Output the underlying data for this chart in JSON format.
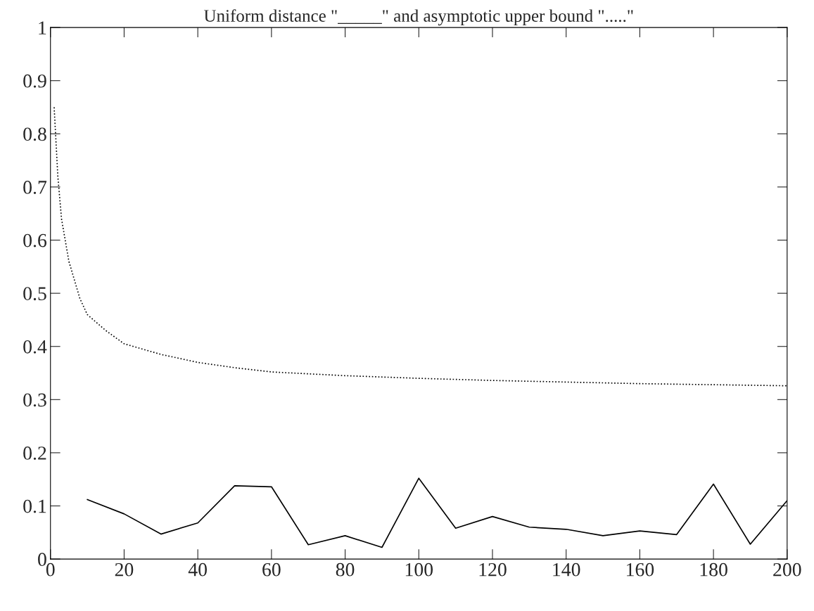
{
  "chart_data": {
    "type": "line",
    "title": "Uniform distance \"_____\" and asymptotic upper bound \".....\"",
    "xlim": [
      0,
      200
    ],
    "xticks": [
      0,
      20,
      40,
      60,
      80,
      100,
      120,
      140,
      160,
      180,
      200
    ],
    "ylim": [
      0,
      1
    ],
    "yticks": [
      0,
      0.1,
      0.2,
      0.3,
      0.4,
      0.5,
      0.6,
      0.7,
      0.8,
      0.9,
      1
    ],
    "grid": false,
    "legend": false,
    "series": [
      {
        "color": "#000000",
        "line_style": "solid",
        "x": [
          10,
          20,
          30,
          40,
          50,
          60,
          70,
          80,
          90,
          100,
          110,
          120,
          130,
          140,
          150,
          160,
          170,
          180,
          190,
          200
        ],
        "values": [
          0.112,
          0.085,
          0.047,
          0.068,
          0.138,
          0.136,
          0.027,
          0.044,
          0.022,
          0.152,
          0.058,
          0.08,
          0.06,
          0.056,
          0.044,
          0.053,
          0.046,
          0.141,
          0.028,
          0.11
        ]
      },
      {
        "color": "#000000",
        "line_style": "dotted",
        "x": [
          1,
          2,
          3,
          5,
          8,
          10,
          15,
          20,
          30,
          40,
          50,
          60,
          80,
          100,
          120,
          140,
          160,
          180,
          200
        ],
        "values": [
          0.85,
          0.72,
          0.64,
          0.56,
          0.49,
          0.46,
          0.43,
          0.405,
          0.385,
          0.37,
          0.36,
          0.352,
          0.345,
          0.34,
          0.336,
          0.333,
          0.33,
          0.328,
          0.326
        ]
      }
    ]
  }
}
